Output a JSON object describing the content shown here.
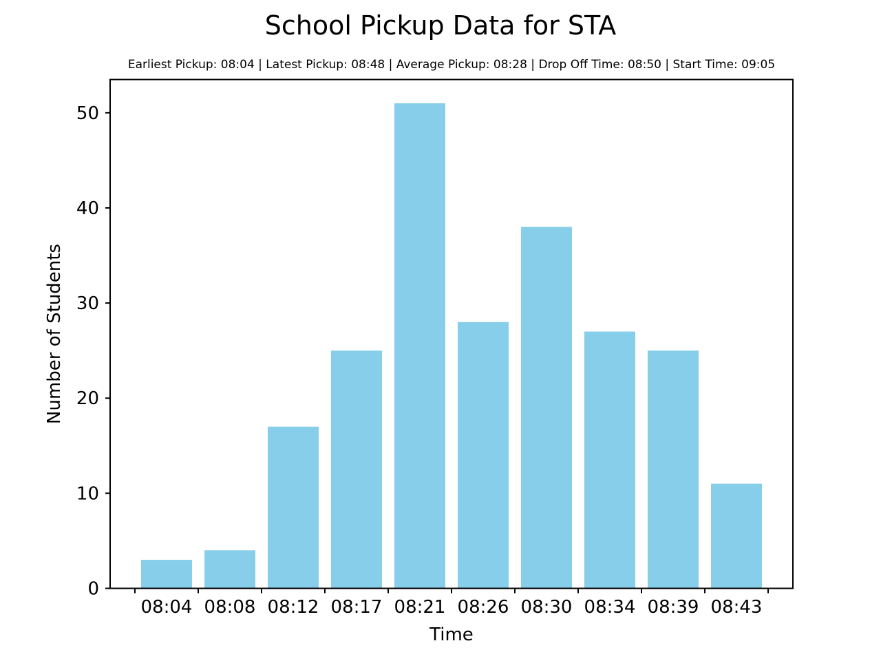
{
  "chart_data": {
    "type": "bar",
    "title": "School Pickup Data for STA",
    "subtitle": "Earliest Pickup: 08:04 | Latest Pickup: 08:48 | Average Pickup: 08:28 | Drop Off Time: 08:50 | Start Time: 09:05",
    "xlabel": "Time",
    "ylabel": "Number of Students",
    "categories": [
      "08:04",
      "08:08",
      "08:12",
      "08:17",
      "08:21",
      "08:26",
      "08:30",
      "08:34",
      "08:39",
      "08:43"
    ],
    "values": [
      3,
      4,
      17,
      25,
      51,
      28,
      38,
      27,
      25,
      11
    ],
    "ylim": [
      0,
      53.5
    ],
    "yticks": [
      0,
      10,
      20,
      30,
      40,
      50
    ],
    "bar_color": "#87CEEB",
    "grid": false,
    "legend": "none"
  }
}
